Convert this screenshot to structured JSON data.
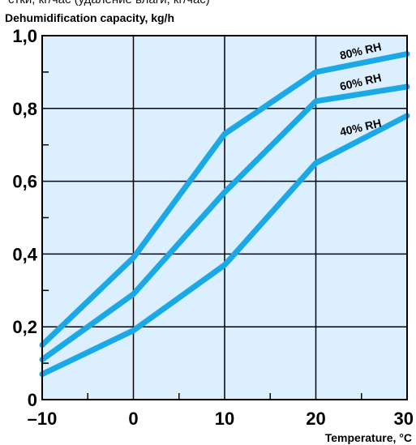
{
  "top_caption": "стки, кг/час (удаление влаги, кг/час)",
  "chart_data": {
    "type": "line",
    "title": "Dehumidification capacity, kg/h",
    "xlabel": "Temperature, °C",
    "ylabel": "",
    "xlim": [
      -10,
      30
    ],
    "ylim": [
      0,
      1.0
    ],
    "x_ticks": [
      -10,
      0,
      10,
      20,
      30
    ],
    "x_tick_labels": [
      "–10",
      "0",
      "10",
      "20",
      "30"
    ],
    "y_ticks": [
      0,
      0.2,
      0.4,
      0.6,
      0.8,
      1.0
    ],
    "y_tick_labels": [
      "0",
      "0,2",
      "0,4",
      "0,6",
      "0,8",
      "1,0"
    ],
    "grid": true,
    "background": "#dcefff",
    "line_color": "#1aa9e6",
    "series": [
      {
        "name": "80% RH",
        "x": [
          -10,
          0,
          10,
          20,
          30
        ],
        "y": [
          0.15,
          0.39,
          0.73,
          0.9,
          0.95
        ]
      },
      {
        "name": "60% RH",
        "x": [
          -10,
          0,
          10,
          20,
          30
        ],
        "y": [
          0.11,
          0.29,
          0.57,
          0.82,
          0.86
        ]
      },
      {
        "name": "40% RH",
        "x": [
          -10,
          0,
          10,
          20,
          30
        ],
        "y": [
          0.07,
          0.19,
          0.37,
          0.65,
          0.78
        ]
      }
    ]
  }
}
